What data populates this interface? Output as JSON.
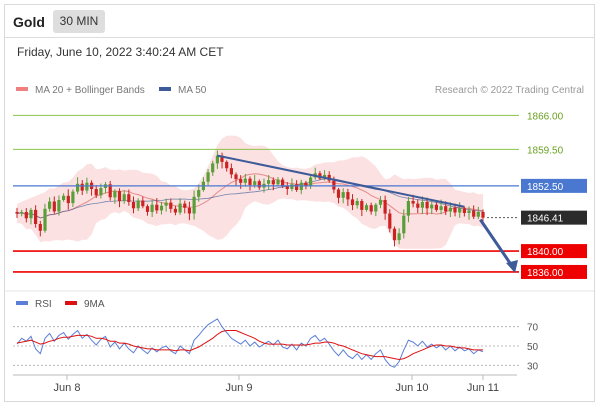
{
  "header": {
    "symbol": "Gold",
    "timeframe": "30 MIN",
    "datetime": "Friday, June 10, 2022 3:40:24 AM CET"
  },
  "legend_top": [
    {
      "label": "MA 20 + Bollinger Bands",
      "color": "#f08080"
    },
    {
      "label": "MA 50",
      "color": "#3d5a99"
    }
  ],
  "copyright": "Research © 2022 Trading Central",
  "legend_bottom": [
    {
      "label": "RSI",
      "color": "#5b7fd6"
    },
    {
      "label": "9MA",
      "color": "#dd1111"
    }
  ],
  "colors": {
    "up": "#5a9e3a",
    "down": "#cc2222",
    "green_level": "#8bc34a",
    "blue_level": "#4a78d0",
    "red_level": "#ee0000",
    "band": "#fbdede",
    "ma20": "#e57373",
    "ma50": "#3d5a99",
    "trend": "#3d5a99"
  },
  "chart_data": [
    {
      "type": "candlestick",
      "title": "Gold 30 MIN",
      "ylim": [
        1833.5,
        1868
      ],
      "x_tick_labels": [
        "Jun 8",
        "Jun 9",
        "Jun 10",
        "Jun 11"
      ],
      "levels": [
        {
          "value": 1866.0,
          "label": "1866.00",
          "kind": "resistance"
        },
        {
          "value": 1859.5,
          "label": "1859.50",
          "kind": "resistance"
        },
        {
          "value": 1852.5,
          "label": "1852.50",
          "kind": "pivot"
        },
        {
          "value": 1846.41,
          "label": "1846.41",
          "kind": "last"
        },
        {
          "value": 1840.0,
          "label": "1840.00",
          "kind": "support"
        },
        {
          "value": 1836.0,
          "label": "1836.00",
          "kind": "support"
        }
      ],
      "trendline": {
        "start_time": "Jun 9",
        "start_value": 1858.3,
        "end_value": 1848.5
      },
      "forecast_target": 1836.0,
      "series": [
        {
          "name": "MA 20 + Bollinger Bands"
        },
        {
          "name": "MA 50"
        }
      ],
      "close_path": [
        1847.2,
        1847.5,
        1846.3,
        1847.9,
        1845.2,
        1843.9,
        1848.1,
        1849.5,
        1847.6,
        1849.8,
        1850.6,
        1849.2,
        1851.4,
        1852.9,
        1851.6,
        1853.1,
        1851.9,
        1850.7,
        1852.1,
        1852.8,
        1850.3,
        1851.5,
        1849.6,
        1850.9,
        1849.4,
        1848.2,
        1849.7,
        1848.6,
        1847.5,
        1848.9,
        1847.8,
        1848.7,
        1849.3,
        1848.1,
        1847.4,
        1849.1,
        1848.3,
        1847.2,
        1850.4,
        1851.7,
        1853.3,
        1855.1,
        1856.8,
        1858.3,
        1857.1,
        1855.9,
        1854.7,
        1853.8,
        1853.1,
        1853.9,
        1852.7,
        1853.4,
        1852.2,
        1852.9,
        1853.6,
        1852.8,
        1853.7,
        1852.4,
        1851.9,
        1852.8,
        1851.7,
        1853.1,
        1852.5,
        1854.1,
        1854.9,
        1853.9,
        1854.6,
        1853.5,
        1851.8,
        1850.2,
        1851.3,
        1849.9,
        1848.8,
        1849.6,
        1847.9,
        1848.8,
        1847.6,
        1848.9,
        1849.8,
        1847.2,
        1844.3,
        1842.1,
        1843.4,
        1846.8,
        1849.6,
        1849.1,
        1848.3,
        1849.4,
        1848.2,
        1848.9,
        1847.9,
        1848.6,
        1847.6,
        1848.3,
        1847.4,
        1848.2,
        1847.3,
        1847.8,
        1846.6,
        1847.5,
        1846.41
      ],
      "rsi": {
        "ylim": [
          20,
          80
        ],
        "ticks": [
          "70",
          "50",
          "30"
        ],
        "series": [
          {
            "name": "RSI",
            "values": [
              52,
              58,
              55,
              60,
              47,
              42,
              58,
              63,
              55,
              61,
              64,
              57,
              62,
              66,
              58,
              62,
              56,
              51,
              57,
              60,
              49,
              54,
              47,
              53,
              47,
              43,
              50,
              46,
              42,
              48,
              44,
              48,
              50,
              45,
              42,
              50,
              46,
              42,
              56,
              61,
              67,
              72,
              75,
              78,
              70,
              64,
              58,
              55,
              52,
              56,
              50,
              54,
              49,
              52,
              55,
              51,
              56,
              49,
              47,
              52,
              46,
              53,
              50,
              58,
              61,
              55,
              58,
              52,
              45,
              40,
              46,
              40,
              37,
              42,
              36,
              41,
              36,
              42,
              46,
              36,
              30,
              28,
              34,
              46,
              56,
              54,
              50,
              55,
              49,
              52,
              48,
              51,
              46,
              50,
              45,
              49,
              45,
              47,
              42,
              46,
              44
            ]
          },
          {
            "name": "9MA",
            "values": [
              53,
              54,
              55,
              56,
              54,
              52,
              53,
              55,
              56,
              58,
              59,
              59,
              60,
              61,
              61,
              61,
              60,
              58,
              58,
              57,
              55,
              55,
              53,
              53,
              52,
              50,
              49,
              48,
              47,
              47,
              46,
              46,
              46,
              46,
              45,
              46,
              46,
              45,
              47,
              49,
              52,
              55,
              58,
              62,
              65,
              66,
              66,
              66,
              64,
              62,
              60,
              58,
              55,
              53,
              52,
              52,
              52,
              52,
              51,
              51,
              51,
              51,
              51,
              52,
              53,
              53,
              54,
              54,
              53,
              51,
              50,
              48,
              46,
              44,
              42,
              41,
              40,
              39,
              39,
              39,
              38,
              37,
              36,
              37,
              39,
              42,
              44,
              46,
              48,
              50,
              51,
              51,
              50,
              50,
              49,
              48,
              48,
              47,
              46,
              46,
              46
            ]
          }
        ]
      }
    }
  ]
}
